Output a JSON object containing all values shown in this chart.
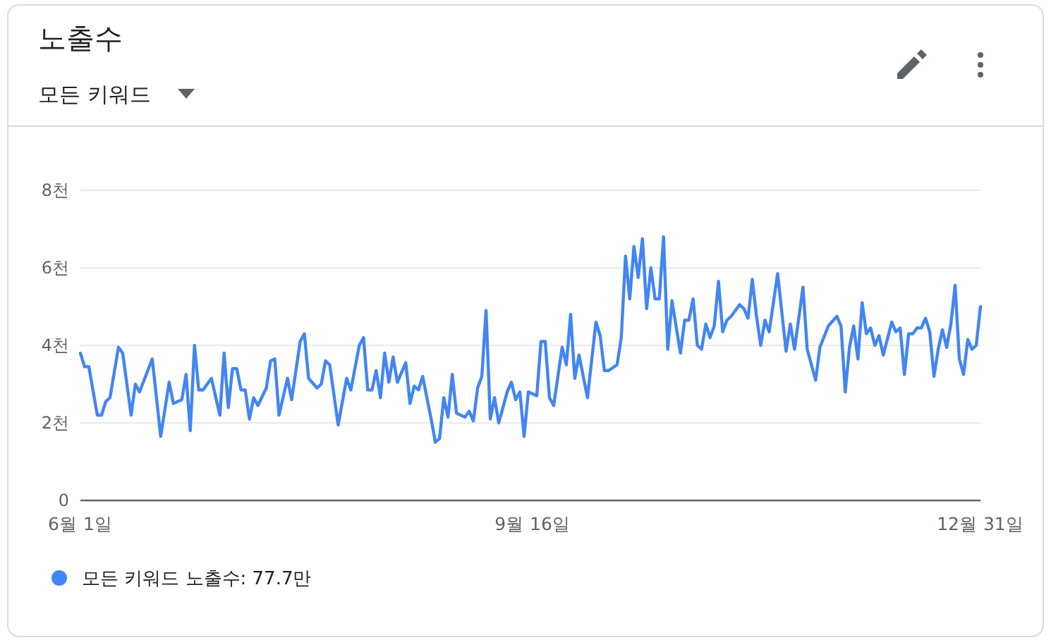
{
  "chart_data": {
    "type": "line",
    "title": "노출수",
    "subtitle": "모든 키워드",
    "x": [
      "--06-01",
      "--06-02",
      "--06-03",
      "--06-05",
      "--06-06",
      "--06-07",
      "--06-08",
      "--06-10",
      "--06-11",
      "--06-13",
      "--06-14",
      "--06-15",
      "--06-18",
      "--06-20",
      "--06-22",
      "--06-23",
      "--06-25",
      "--06-26",
      "--06-27",
      "--06-28",
      "--06-29",
      "--06-30",
      "--07-02",
      "--07-04",
      "--07-05",
      "--07-06",
      "--07-07",
      "--07-08",
      "--07-09",
      "--07-10",
      "--07-11",
      "--07-12",
      "--07-13",
      "--07-15",
      "--07-16",
      "--07-17",
      "--07-18",
      "--07-20",
      "--07-21",
      "--07-23",
      "--07-24",
      "--07-25",
      "--07-27",
      "--07-28",
      "--07-29",
      "--07-30",
      "--08-01",
      "--08-03",
      "--08-04",
      "--08-06",
      "--08-07",
      "--08-08",
      "--08-09",
      "--08-10",
      "--08-11",
      "--08-12",
      "--08-13",
      "--08-14",
      "--08-15",
      "--08-17",
      "--08-18",
      "--08-19",
      "--08-20",
      "--08-21",
      "--08-23",
      "--08-24",
      "--08-25",
      "--08-26",
      "--08-27",
      "--08-28",
      "--08-29",
      "--08-31",
      "--09-01",
      "--09-02",
      "--09-03",
      "--09-04",
      "--09-05",
      "--09-06",
      "--09-07",
      "--09-08",
      "--09-10",
      "--09-11",
      "--09-12",
      "--09-13",
      "--09-14",
      "--09-15",
      "--09-17",
      "--09-18",
      "--09-19",
      "--09-20",
      "--09-21",
      "--09-23",
      "--09-24",
      "--09-25",
      "--09-26",
      "--09-27",
      "--09-29",
      "--10-01",
      "--10-02",
      "--10-03",
      "--10-04",
      "--10-06",
      "--10-07",
      "--10-08",
      "--10-09",
      "--10-10",
      "--10-11",
      "--10-12",
      "--10-13",
      "--10-14",
      "--10-15",
      "--10-16",
      "--10-17",
      "--10-18",
      "--10-19",
      "--10-21",
      "--10-22",
      "--10-23",
      "--10-24",
      "--10-25",
      "--10-26",
      "--10-27",
      "--10-28",
      "--10-29",
      "--10-30",
      "--10-31",
      "--11-01",
      "--11-02",
      "--11-04",
      "--11-05",
      "--11-06",
      "--11-07",
      "--11-08",
      "--11-09",
      "--11-10",
      "--11-11",
      "--11-13",
      "--11-15",
      "--11-16",
      "--11-17",
      "--11-19",
      "--11-20",
      "--11-22",
      "--11-23",
      "--11-25",
      "--11-27",
      "--11-28",
      "--11-29",
      "--11-30",
      "--12-01",
      "--12-02",
      "--12-03",
      "--12-04",
      "--12-05",
      "--12-06",
      "--12-07",
      "--12-08",
      "--12-10",
      "--12-11",
      "--12-12",
      "--12-13",
      "--12-14",
      "--12-15",
      "--12-16",
      "--12-17",
      "--12-18",
      "--12-19",
      "--12-20",
      "--12-21",
      "--12-22",
      "--12-23",
      "--12-24",
      "--12-25",
      "--12-26",
      "--12-27",
      "--12-28",
      "--12-29",
      "--12-30",
      "--12-31"
    ],
    "series": [
      {
        "name": "모든 키워드 노출수: 77.7만",
        "color": "#4285f4",
        "values": [
          3.8,
          3.45,
          3.45,
          2.2,
          2.2,
          2.55,
          2.65,
          3.95,
          3.8,
          2.2,
          3.0,
          2.8,
          3.65,
          1.65,
          3.05,
          2.5,
          2.6,
          3.25,
          1.8,
          4.0,
          2.85,
          2.85,
          3.15,
          2.2,
          3.8,
          2.4,
          3.4,
          3.4,
          2.85,
          2.85,
          2.1,
          2.65,
          2.45,
          2.9,
          3.6,
          3.65,
          2.2,
          3.15,
          2.6,
          4.1,
          4.3,
          3.15,
          2.9,
          3.0,
          3.6,
          3.5,
          1.95,
          3.15,
          2.85,
          4.0,
          4.2,
          2.85,
          2.85,
          3.35,
          2.65,
          3.8,
          3.05,
          3.7,
          3.05,
          3.55,
          2.5,
          2.95,
          2.85,
          3.2,
          2.1,
          1.5,
          1.6,
          2.65,
          2.15,
          3.25,
          2.25,
          2.15,
          2.3,
          2.05,
          2.9,
          3.2,
          4.9,
          2.1,
          2.65,
          2.0,
          2.8,
          3.05,
          2.6,
          2.8,
          1.65,
          2.8,
          2.7,
          4.1,
          4.1,
          2.65,
          2.45,
          3.95,
          3.5,
          4.8,
          3.15,
          3.75,
          2.65,
          4.6,
          4.25,
          3.35,
          3.35,
          3.5,
          4.2,
          6.3,
          5.2,
          6.55,
          5.75,
          6.75,
          4.95,
          6.0,
          5.2,
          5.2,
          6.8,
          3.9,
          5.15,
          3.8,
          4.65,
          4.65,
          5.2,
          4.0,
          3.9,
          4.55,
          4.2,
          4.5,
          5.65,
          4.35,
          4.65,
          4.75,
          5.05,
          4.95,
          4.7,
          5.7,
          4.75,
          4.0,
          4.65,
          4.35,
          5.85,
          3.85,
          4.55,
          3.9,
          5.5,
          3.9,
          3.1,
          3.95,
          4.5,
          4.75,
          4.5,
          2.8,
          3.95,
          4.5,
          3.65,
          5.1,
          4.3,
          4.45,
          4.0,
          4.25,
          3.75,
          4.6,
          4.35,
          4.45,
          3.25,
          4.3,
          4.3,
          4.45,
          4.45,
          4.7,
          4.35,
          3.2,
          3.9,
          4.4,
          3.95,
          4.55,
          5.55,
          3.65,
          3.25,
          4.15,
          3.9,
          4.0,
          5.0
        ]
      }
    ],
    "xlim": [
      "--06-01",
      "--12-31"
    ],
    "xticks": [
      {
        "value": "--06-01",
        "label": "6월 1일"
      },
      {
        "value": "--09-16",
        "label": "9월 16일"
      },
      {
        "value": "--12-31",
        "label": "12월 31일"
      }
    ],
    "ylim": [
      0,
      8
    ],
    "yticks": [
      0,
      {
        "value": 2,
        "label": "2천"
      },
      {
        "value": 4,
        "label": "4천"
      },
      {
        "value": 6,
        "label": "6천"
      },
      {
        "value": 8,
        "label": "8천"
      }
    ],
    "grid": "y",
    "legend": "bottom"
  }
}
